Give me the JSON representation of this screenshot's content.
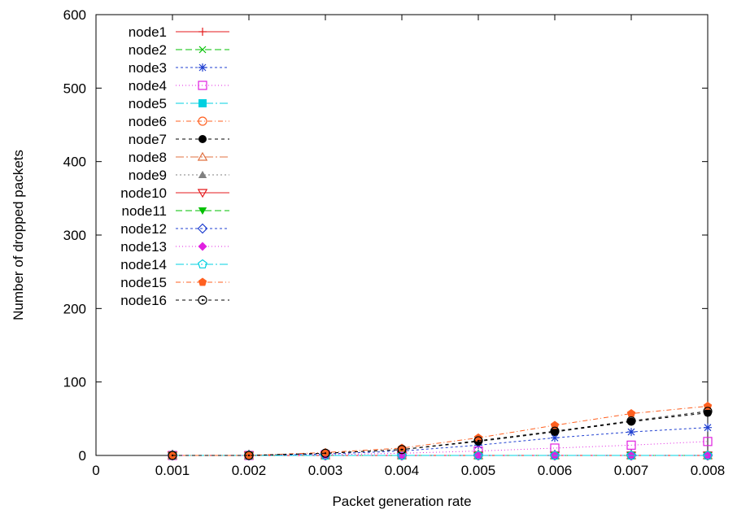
{
  "chart_data": {
    "type": "line",
    "title": "",
    "xlabel": "Packet generation rate",
    "ylabel": "Number of dropped packets",
    "xlim": [
      0,
      0.008
    ],
    "ylim": [
      0,
      600
    ],
    "xticks": [
      "0",
      "0.001",
      "0.002",
      "0.003",
      "0.004",
      "0.005",
      "0.006",
      "0.007",
      "0.008"
    ],
    "yticks": [
      "0",
      "100",
      "200",
      "300",
      "400",
      "500",
      "600"
    ],
    "grid": false,
    "legend_position": "top-left",
    "x": [
      0.001,
      0.002,
      0.003,
      0.004,
      0.005,
      0.006,
      0.007,
      0.008
    ],
    "series": [
      {
        "name": "node1",
        "color": "#e41a1c",
        "marker": "plus",
        "dash": "",
        "values": [
          0,
          0,
          0,
          0,
          0,
          0,
          0,
          0
        ]
      },
      {
        "name": "node2",
        "color": "#00c000",
        "marker": "cross",
        "dash": "8,4",
        "values": [
          0,
          0,
          0,
          0,
          0,
          0,
          0,
          0
        ]
      },
      {
        "name": "node3",
        "color": "#1f3fd0",
        "marker": "star",
        "dash": "3,3",
        "values": [
          0,
          0,
          2,
          6,
          14,
          24,
          32,
          38
        ]
      },
      {
        "name": "node4",
        "color": "#e020e0",
        "marker": "square-open",
        "dash": "1,3",
        "values": [
          0,
          0,
          1,
          3,
          6,
          10,
          14,
          19
        ]
      },
      {
        "name": "node5",
        "color": "#00d0e0",
        "marker": "square-filled",
        "dash": "10,3,2,3",
        "values": [
          0,
          0,
          0,
          0,
          0,
          0,
          0,
          0
        ]
      },
      {
        "name": "node6",
        "color": "#ff6020",
        "marker": "circle-open",
        "dash": "6,3,1,3",
        "values": [
          0,
          0,
          0,
          0,
          0,
          0,
          0,
          0
        ]
      },
      {
        "name": "node7",
        "color": "#000000",
        "marker": "circle-filled",
        "dash": "4,4",
        "values": [
          0,
          0,
          3,
          8,
          19,
          32,
          46,
          58
        ]
      },
      {
        "name": "node8",
        "color": "#e07040",
        "marker": "triangle-open",
        "dash": "10,3,2,3",
        "values": [
          0,
          0,
          0,
          0,
          0,
          0,
          0,
          0
        ]
      },
      {
        "name": "node9",
        "color": "#808080",
        "marker": "triangle-filled",
        "dash": "2,3",
        "values": [
          0,
          0,
          0,
          0,
          0,
          0,
          0,
          0
        ]
      },
      {
        "name": "node10",
        "color": "#e41a1c",
        "marker": "tri-down-open",
        "dash": "",
        "values": [
          0,
          0,
          0,
          0,
          0,
          0,
          0,
          0
        ]
      },
      {
        "name": "node11",
        "color": "#00c000",
        "marker": "tri-down-filled",
        "dash": "8,4",
        "values": [
          0,
          0,
          0,
          0,
          0,
          0,
          0,
          0
        ]
      },
      {
        "name": "node12",
        "color": "#1f3fd0",
        "marker": "diamond-open",
        "dash": "3,3",
        "values": [
          0,
          0,
          0,
          0,
          0,
          0,
          0,
          0
        ]
      },
      {
        "name": "node13",
        "color": "#e020e0",
        "marker": "diamond-filled",
        "dash": "1,3",
        "values": [
          0,
          0,
          0,
          0,
          0,
          0,
          0,
          0
        ]
      },
      {
        "name": "node14",
        "color": "#00d0e0",
        "marker": "pentagon-open",
        "dash": "10,3,2,3",
        "values": [
          0,
          0,
          0,
          0,
          0,
          0,
          0,
          0
        ]
      },
      {
        "name": "node15",
        "color": "#ff6020",
        "marker": "pentagon-filled",
        "dash": "6,3,1,3",
        "values": [
          0,
          0,
          4,
          10,
          24,
          41,
          57,
          67
        ]
      },
      {
        "name": "node16",
        "color": "#000000",
        "marker": "circle-dot",
        "dash": "4,4",
        "values": [
          0,
          0,
          3,
          8,
          20,
          33,
          47,
          60
        ]
      }
    ]
  }
}
